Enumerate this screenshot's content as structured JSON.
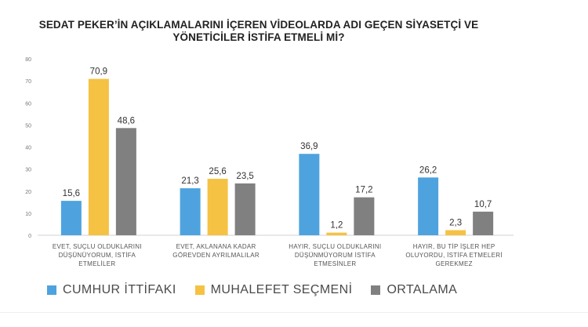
{
  "title_line1": "SEDAT PEKER’İN AÇIKLAMALARINI İÇEREN VİDEOLARDA ADI GEÇEN SİYASETÇİ VE",
  "title_line2": "YÖNETİCİLER İSTİFA ETMELİ Mİ?",
  "chart_data": {
    "type": "bar",
    "title": "SEDAT PEKER’İN AÇIKLAMALARINI İÇEREN VİDEOLARDA ADI GEÇEN SİYASETÇİ VE YÖNETİCİLER İSTİFA ETMELİ Mİ?",
    "categories": [
      [
        "EVET, SUÇLU OLDUKLARINI",
        "DÜŞÜNÜYORUM, İSTİFA",
        "ETMELİLER"
      ],
      [
        "EVET, AKLANANA KADAR",
        "GÖREVDEN AYRILMALILAR"
      ],
      [
        "HAYIR, SUÇLU OLDUKLARINI",
        "DÜŞÜNMÜYORUM İSTİFA",
        "ETMESİNLER"
      ],
      [
        "HAYIR, BU TİP İŞLER HEP",
        "OLUYORDU, İSTİFA ETMELERİ",
        "GEREKMEZ"
      ]
    ],
    "series": [
      {
        "name": "CUMHUR İTTİFAKI",
        "color": "#4ea3de",
        "values": [
          15.6,
          21.3,
          36.9,
          26.2
        ],
        "labels": [
          "15,6",
          "21,3",
          "36,9",
          "26,2"
        ]
      },
      {
        "name": "MUHALEFET SEÇMENİ",
        "color": "#f5c243",
        "values": [
          70.9,
          25.6,
          1.2,
          2.3
        ],
        "labels": [
          "70,9",
          "25,6",
          "1,2",
          "2,3"
        ]
      },
      {
        "name": "ORTALAMA",
        "color": "#808080",
        "values": [
          48.6,
          23.5,
          17.2,
          10.7
        ],
        "labels": [
          "48,6",
          "23,5",
          "17,2",
          "10,7"
        ]
      }
    ],
    "ylim": [
      0,
      80
    ],
    "yticks": [
      0,
      10,
      20,
      30,
      40,
      50,
      60,
      70,
      80
    ],
    "grid": false,
    "legend_position": "bottom"
  }
}
